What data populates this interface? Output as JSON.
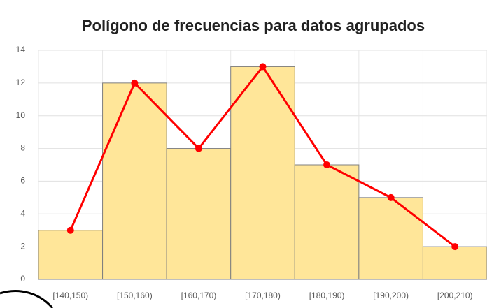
{
  "chart_data": {
    "type": "bar",
    "title": "Polígono de frecuencias para datos agrupados",
    "categories": [
      "[140,150)",
      "[150,160)",
      "[160,170)",
      "[170,180)",
      "[180,190)",
      "[190,200)",
      "[200,210)"
    ],
    "series": [
      {
        "type": "bar",
        "color": "#ffe699",
        "values": [
          3,
          12,
          8,
          13,
          7,
          5,
          2
        ]
      },
      {
        "type": "line",
        "color": "#ff0000",
        "values": [
          3,
          12,
          8,
          13,
          7,
          5,
          2
        ]
      }
    ],
    "ylim": [
      0,
      14
    ],
    "yticks": [
      0,
      2,
      4,
      6,
      8,
      10,
      12,
      14
    ],
    "grid": true
  }
}
